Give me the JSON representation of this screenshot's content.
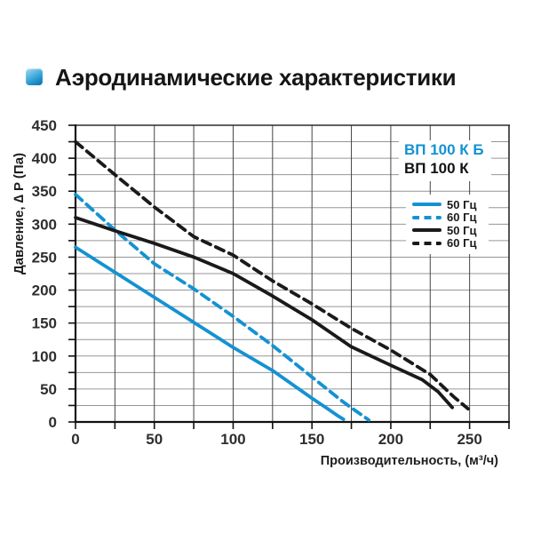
{
  "title": "Аэродинамические характеристики",
  "chart_data": {
    "type": "line",
    "xlabel": "Производительность, (м³/ч)",
    "ylabel": "Давление, ∆ P (Па)",
    "xlim": [
      0,
      275
    ],
    "ylim": [
      0,
      450
    ],
    "x_tick_labels": [
      0,
      50,
      100,
      150,
      200,
      250
    ],
    "y_tick_labels": [
      0,
      50,
      100,
      150,
      200,
      250,
      300,
      350,
      400,
      450
    ],
    "grid_step": 25,
    "grid": "on",
    "legend_position": "top-right",
    "colors": {
      "blue": "#1492d2",
      "black": "#1a1a1a",
      "h_grid": "#969696",
      "v_grid": "#454545"
    },
    "models": [
      {
        "name": "ВП 100 К Б",
        "color": "#1492d2"
      },
      {
        "name": "ВП 100 К",
        "color": "#141414"
      }
    ],
    "legend": [
      {
        "label": "50 Гц",
        "color": "#1492d2",
        "dash": false
      },
      {
        "label": "60 Гц",
        "color": "#1492d2",
        "dash": true
      },
      {
        "label": "50 Гц",
        "color": "#1a1a1a",
        "dash": false
      },
      {
        "label": "60 Гц",
        "color": "#1a1a1a",
        "dash": true
      }
    ],
    "series": [
      {
        "name": "ВП 100 К Б 50 Гц",
        "color": "#1492d2",
        "dash": false,
        "points": [
          [
            0,
            265
          ],
          [
            25,
            227
          ],
          [
            50,
            189
          ],
          [
            75,
            151
          ],
          [
            100,
            113
          ],
          [
            125,
            78
          ],
          [
            150,
            36
          ],
          [
            160,
            20
          ],
          [
            166,
            10
          ],
          [
            170,
            4
          ]
        ]
      },
      {
        "name": "ВП 100 К Б 60 Гц",
        "color": "#1492d2",
        "dash": true,
        "points": [
          [
            0,
            345
          ],
          [
            25,
            291
          ],
          [
            50,
            240
          ],
          [
            75,
            202
          ],
          [
            100,
            160
          ],
          [
            125,
            116
          ],
          [
            150,
            68
          ],
          [
            170,
            30
          ],
          [
            186,
            3
          ]
        ]
      },
      {
        "name": "ВП 100 К 50 Гц",
        "color": "#1a1a1a",
        "dash": false,
        "points": [
          [
            0,
            310
          ],
          [
            25,
            290
          ],
          [
            50,
            271
          ],
          [
            75,
            250
          ],
          [
            100,
            225
          ],
          [
            125,
            191
          ],
          [
            150,
            155
          ],
          [
            175,
            114
          ],
          [
            200,
            86
          ],
          [
            220,
            64
          ],
          [
            230,
            46
          ],
          [
            239,
            22
          ]
        ]
      },
      {
        "name": "ВП 100 К 60 Гц",
        "color": "#1a1a1a",
        "dash": true,
        "points": [
          [
            0,
            425
          ],
          [
            25,
            375
          ],
          [
            50,
            326
          ],
          [
            75,
            281
          ],
          [
            100,
            253
          ],
          [
            125,
            214
          ],
          [
            150,
            179
          ],
          [
            175,
            142
          ],
          [
            200,
            109
          ],
          [
            225,
            72
          ],
          [
            240,
            38
          ],
          [
            249,
            20
          ]
        ]
      }
    ]
  }
}
